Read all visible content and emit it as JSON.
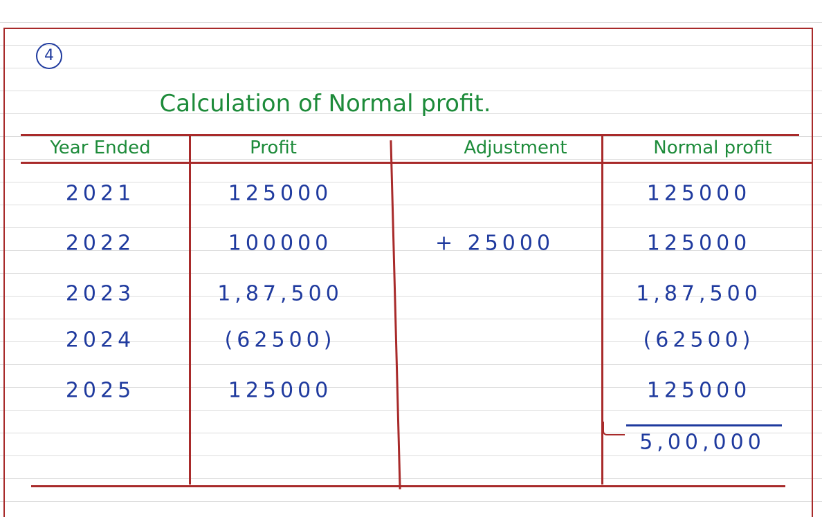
{
  "marker": "4",
  "title": "Calculation of Normal profit.",
  "table": {
    "columns": [
      "Year Ended",
      "Profit",
      "Adjustment",
      "Normal profit"
    ],
    "rows": [
      {
        "year": "2021",
        "profit": "125000",
        "normal_profit": "125000"
      },
      {
        "year": "2022",
        "profit": "100000",
        "adjustment": "+ 25000",
        "normal_profit": "125000"
      },
      {
        "year": "2023",
        "profit": "1,87,500",
        "normal_profit": "1,87,500"
      },
      {
        "year": "2024",
        "profit": "(62500)",
        "normal_profit": "(62500)"
      },
      {
        "year": "2025",
        "profit": "125000",
        "normal_profit": "125000"
      }
    ],
    "total": "5,00,000"
  }
}
